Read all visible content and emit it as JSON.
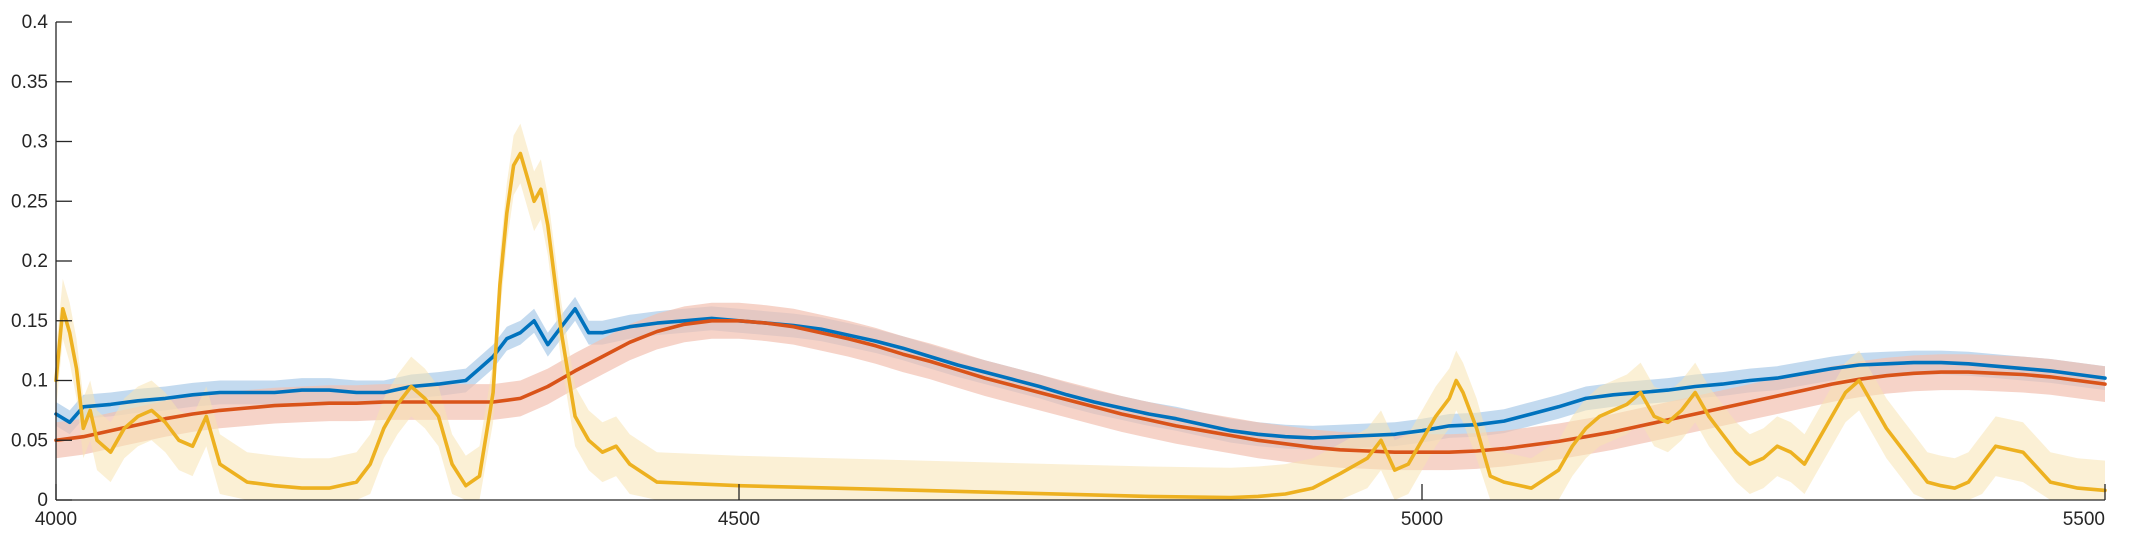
{
  "chart_data": {
    "type": "line",
    "title": "",
    "xlabel": "",
    "ylabel": "",
    "xlim": [
      4000,
      5500
    ],
    "ylim": [
      0,
      0.4
    ],
    "xticks": [
      "4000",
      "4500",
      "5000",
      "5500"
    ],
    "yticks": [
      "0",
      "0.05",
      "0.1",
      "0.15",
      "0.2",
      "0.25",
      "0.3",
      "0.35",
      "0.4"
    ],
    "grid": false,
    "legend": "none",
    "colors": {
      "blue": "#0072BD",
      "red": "#D95319",
      "yellow": "#EDB120",
      "blue_band": "#A9CBE8",
      "red_band": "#F2C1B0",
      "yellow_band": "#F7E4B3"
    },
    "series": [
      {
        "color": "#0072BD",
        "band": 0.01,
        "x": [
          4000,
          4010,
          4020,
          4040,
          4060,
          4080,
          4100,
          4120,
          4140,
          4160,
          4180,
          4200,
          4220,
          4240,
          4260,
          4280,
          4300,
          4310,
          4320,
          4330,
          4340,
          4350,
          4360,
          4370,
          4380,
          4390,
          4400,
          4420,
          4440,
          4460,
          4480,
          4500,
          4520,
          4540,
          4560,
          4580,
          4600,
          4620,
          4640,
          4660,
          4680,
          4700,
          4720,
          4740,
          4760,
          4780,
          4800,
          4820,
          4840,
          4860,
          4880,
          4900,
          4920,
          4940,
          4960,
          4980,
          5000,
          5020,
          5040,
          5060,
          5080,
          5100,
          5120,
          5140,
          5160,
          5180,
          5200,
          5220,
          5240,
          5260,
          5280,
          5300,
          5320,
          5340,
          5360,
          5380,
          5400,
          5420,
          5440,
          5460,
          5480,
          5500
        ],
        "y": [
          0.072,
          0.065,
          0.078,
          0.08,
          0.083,
          0.085,
          0.088,
          0.09,
          0.09,
          0.09,
          0.092,
          0.092,
          0.09,
          0.09,
          0.095,
          0.097,
          0.1,
          0.11,
          0.12,
          0.135,
          0.14,
          0.15,
          0.13,
          0.145,
          0.16,
          0.14,
          0.14,
          0.145,
          0.148,
          0.15,
          0.152,
          0.15,
          0.148,
          0.146,
          0.143,
          0.138,
          0.133,
          0.127,
          0.12,
          0.113,
          0.107,
          0.101,
          0.095,
          0.088,
          0.082,
          0.077,
          0.072,
          0.068,
          0.063,
          0.058,
          0.055,
          0.053,
          0.052,
          0.053,
          0.054,
          0.055,
          0.058,
          0.062,
          0.063,
          0.066,
          0.072,
          0.078,
          0.085,
          0.088,
          0.09,
          0.092,
          0.095,
          0.097,
          0.1,
          0.102,
          0.106,
          0.11,
          0.113,
          0.114,
          0.115,
          0.115,
          0.114,
          0.112,
          0.11,
          0.108,
          0.105,
          0.102
        ]
      },
      {
        "color": "#D95319",
        "band": 0.015,
        "x": [
          4000,
          4020,
          4040,
          4060,
          4080,
          4100,
          4120,
          4140,
          4160,
          4180,
          4200,
          4220,
          4240,
          4260,
          4280,
          4300,
          4320,
          4340,
          4360,
          4380,
          4400,
          4420,
          4440,
          4460,
          4480,
          4500,
          4520,
          4540,
          4560,
          4580,
          4600,
          4620,
          4640,
          4660,
          4680,
          4700,
          4720,
          4740,
          4760,
          4780,
          4800,
          4820,
          4840,
          4860,
          4880,
          4900,
          4920,
          4940,
          4960,
          4980,
          5000,
          5020,
          5040,
          5060,
          5080,
          5100,
          5120,
          5140,
          5160,
          5180,
          5200,
          5220,
          5240,
          5260,
          5280,
          5300,
          5320,
          5340,
          5360,
          5380,
          5400,
          5420,
          5440,
          5460,
          5480,
          5500
        ],
        "y": [
          0.05,
          0.053,
          0.058,
          0.063,
          0.068,
          0.072,
          0.075,
          0.077,
          0.079,
          0.08,
          0.081,
          0.081,
          0.082,
          0.082,
          0.082,
          0.082,
          0.082,
          0.085,
          0.095,
          0.108,
          0.12,
          0.132,
          0.141,
          0.147,
          0.15,
          0.15,
          0.148,
          0.145,
          0.14,
          0.135,
          0.129,
          0.122,
          0.116,
          0.109,
          0.102,
          0.096,
          0.09,
          0.084,
          0.078,
          0.072,
          0.067,
          0.062,
          0.058,
          0.054,
          0.05,
          0.047,
          0.044,
          0.042,
          0.041,
          0.04,
          0.04,
          0.04,
          0.041,
          0.043,
          0.046,
          0.049,
          0.053,
          0.057,
          0.062,
          0.067,
          0.072,
          0.077,
          0.082,
          0.087,
          0.092,
          0.097,
          0.101,
          0.104,
          0.106,
          0.107,
          0.107,
          0.106,
          0.105,
          0.103,
          0.1,
          0.097
        ]
      },
      {
        "color": "#EDB120",
        "band": 0.025,
        "x": [
          4000,
          4005,
          4010,
          4015,
          4020,
          4025,
          4030,
          4040,
          4050,
          4060,
          4070,
          4080,
          4090,
          4100,
          4110,
          4120,
          4140,
          4160,
          4180,
          4200,
          4220,
          4230,
          4240,
          4250,
          4260,
          4270,
          4280,
          4290,
          4300,
          4310,
          4320,
          4325,
          4330,
          4335,
          4340,
          4345,
          4350,
          4355,
          4360,
          4370,
          4380,
          4390,
          4400,
          4410,
          4420,
          4440,
          4500,
          4600,
          4700,
          4800,
          4860,
          4880,
          4900,
          4920,
          4940,
          4960,
          4970,
          4980,
          4990,
          5000,
          5010,
          5020,
          5025,
          5030,
          5040,
          5050,
          5060,
          5080,
          5100,
          5110,
          5120,
          5130,
          5140,
          5150,
          5160,
          5170,
          5180,
          5190,
          5200,
          5210,
          5220,
          5230,
          5240,
          5250,
          5260,
          5270,
          5280,
          5290,
          5300,
          5310,
          5320,
          5340,
          5360,
          5370,
          5380,
          5390,
          5400,
          5410,
          5420,
          5440,
          5460,
          5480,
          5500
        ],
        "y": [
          0.1,
          0.16,
          0.14,
          0.11,
          0.06,
          0.075,
          0.05,
          0.04,
          0.06,
          0.07,
          0.075,
          0.065,
          0.05,
          0.045,
          0.07,
          0.03,
          0.015,
          0.012,
          0.01,
          0.01,
          0.015,
          0.03,
          0.06,
          0.08,
          0.095,
          0.085,
          0.07,
          0.03,
          0.012,
          0.02,
          0.09,
          0.18,
          0.24,
          0.28,
          0.29,
          0.27,
          0.25,
          0.26,
          0.23,
          0.14,
          0.07,
          0.05,
          0.04,
          0.045,
          0.03,
          0.015,
          0.012,
          0.009,
          0.006,
          0.003,
          0.002,
          0.003,
          0.005,
          0.01,
          0.022,
          0.035,
          0.05,
          0.025,
          0.03,
          0.05,
          0.07,
          0.085,
          0.1,
          0.09,
          0.06,
          0.02,
          0.015,
          0.01,
          0.025,
          0.045,
          0.06,
          0.07,
          0.075,
          0.08,
          0.09,
          0.07,
          0.065,
          0.075,
          0.09,
          0.07,
          0.055,
          0.04,
          0.03,
          0.035,
          0.045,
          0.04,
          0.03,
          0.05,
          0.07,
          0.09,
          0.1,
          0.06,
          0.03,
          0.015,
          0.012,
          0.01,
          0.015,
          0.03,
          0.045,
          0.04,
          0.015,
          0.01,
          0.008
        ]
      }
    ]
  }
}
